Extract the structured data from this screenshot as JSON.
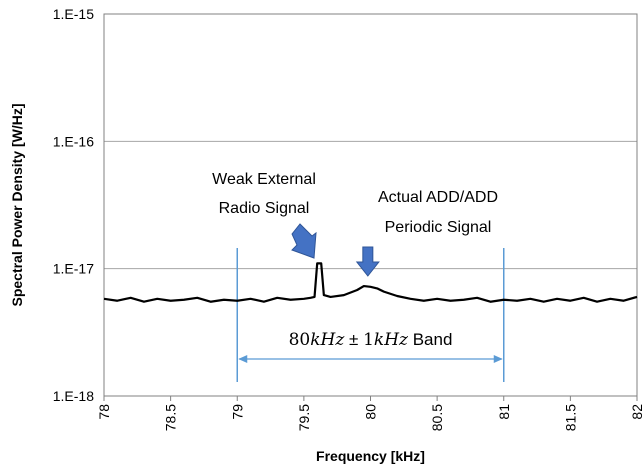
{
  "chart_data": {
    "type": "line",
    "xlabel": "Frequency [kHz]",
    "ylabel": "Spectral Power Density [W/Hz]",
    "xlim": [
      78,
      82
    ],
    "ylim": [
      1e-18,
      1e-15
    ],
    "yscale": "log",
    "x_ticks": [
      "78",
      "78.5",
      "79",
      "79.5",
      "80",
      "80.5",
      "81",
      "81.5",
      "82"
    ],
    "y_ticks": [
      "1.E-18",
      "1.E-17",
      "1.E-16",
      "1.E-15"
    ],
    "grid": "horizontal major",
    "series": [
      {
        "color": "#000000",
        "baseline": 5.7e-18,
        "points": [
          [
            78.0,
            5.8e-18
          ],
          [
            78.1,
            5.6e-18
          ],
          [
            78.2,
            5.9e-18
          ],
          [
            78.3,
            5.5e-18
          ],
          [
            78.4,
            5.8e-18
          ],
          [
            78.5,
            5.6e-18
          ],
          [
            78.6,
            5.7e-18
          ],
          [
            78.7,
            5.9e-18
          ],
          [
            78.8,
            5.5e-18
          ],
          [
            78.9,
            5.7e-18
          ],
          [
            79.0,
            5.6e-18
          ],
          [
            79.1,
            5.8e-18
          ],
          [
            79.2,
            5.5e-18
          ],
          [
            79.3,
            5.9e-18
          ],
          [
            79.4,
            5.7e-18
          ],
          [
            79.5,
            5.8e-18
          ],
          [
            79.55,
            5.9e-18
          ],
          [
            79.58,
            6e-18
          ],
          [
            79.6,
            1.1e-17
          ],
          [
            79.63,
            1.1e-17
          ],
          [
            79.65,
            6.2e-18
          ],
          [
            79.7,
            6e-18
          ],
          [
            79.8,
            6.2e-18
          ],
          [
            79.9,
            6.8e-18
          ],
          [
            79.95,
            7.3e-18
          ],
          [
            80.0,
            7.2e-18
          ],
          [
            80.05,
            7e-18
          ],
          [
            80.1,
            6.6e-18
          ],
          [
            80.2,
            6.1e-18
          ],
          [
            80.3,
            5.8e-18
          ],
          [
            80.4,
            5.6e-18
          ],
          [
            80.5,
            5.8e-18
          ],
          [
            80.6,
            5.6e-18
          ],
          [
            80.7,
            5.7e-18
          ],
          [
            80.8,
            5.9e-18
          ],
          [
            80.9,
            5.5e-18
          ],
          [
            81.0,
            5.7e-18
          ],
          [
            81.1,
            5.6e-18
          ],
          [
            81.2,
            5.8e-18
          ],
          [
            81.3,
            5.5e-18
          ],
          [
            81.4,
            5.8e-18
          ],
          [
            81.5,
            5.6e-18
          ],
          [
            81.6,
            5.9e-18
          ],
          [
            81.7,
            5.5e-18
          ],
          [
            81.8,
            5.8e-18
          ],
          [
            81.9,
            5.6e-18
          ],
          [
            82.0,
            6e-18
          ]
        ]
      }
    ],
    "annotations": {
      "radio_signal": {
        "line1": "Weak External",
        "line2": "Radio Signal",
        "x": 79.6
      },
      "periodic_signal": {
        "line1": "Actual ADD/ADD",
        "line2": "Periodic Signal",
        "x": 79.98
      },
      "band": {
        "from": 79,
        "to": 81,
        "label_center": "80",
        "label_unit": "kHz",
        "label_pm": "±",
        "label_width": "1",
        "label_suffix": "Band"
      }
    },
    "colors": {
      "annotation_arrow": "#4472C4",
      "band_line": "#5B9BD5",
      "grid": "#A6A6A6",
      "trace": "#000000"
    }
  }
}
